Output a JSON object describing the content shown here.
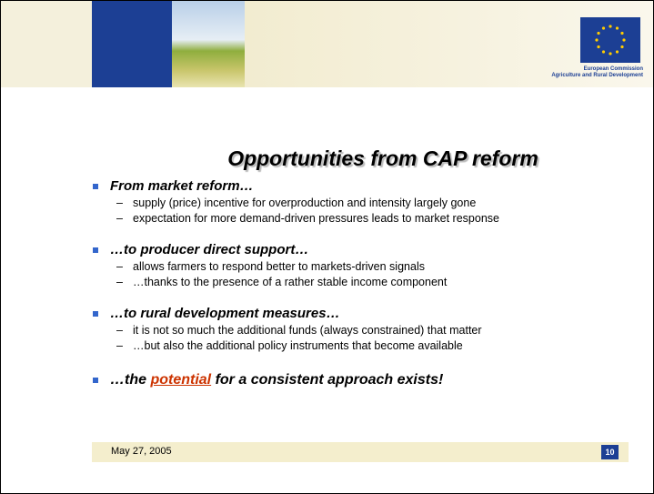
{
  "header": {
    "logo_lines": [
      "European Commission",
      "Agriculture and Rural Development"
    ]
  },
  "title": "Opportunities from CAP reform",
  "bullets": [
    {
      "text": "From market reform…",
      "sub": [
        "supply (price) incentive for overproduction and intensity largely gone",
        "expectation for more demand-driven pressures leads to market response"
      ]
    },
    {
      "text": "…to producer direct support…",
      "sub": [
        "allows farmers to respond better to markets-driven signals",
        "…thanks to the presence of a rather stable income component"
      ]
    },
    {
      "text": "…to rural development measures…",
      "sub": [
        "it is not so much the additional funds (always constrained) that matter",
        "…but also the additional policy instruments that become available"
      ]
    }
  ],
  "final_bullet": {
    "before": "…the ",
    "highlight": "potential",
    "after": " for a consistent approach exists!"
  },
  "footer": {
    "date": "May 27, 2005",
    "page": "10"
  }
}
